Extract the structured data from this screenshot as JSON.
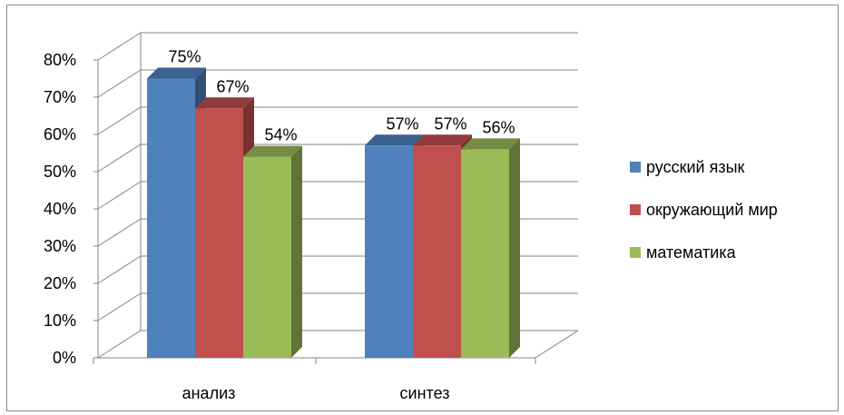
{
  "chart_data": {
    "type": "bar",
    "style": "3d-clustered-column",
    "categories": [
      "анализ",
      "синтез"
    ],
    "series": [
      {
        "name": "русский язык",
        "values": [
          75,
          57
        ],
        "color": "#4F81BD"
      },
      {
        "name": "окружающий мир",
        "values": [
          67,
          57
        ],
        "color": "#C0504D"
      },
      {
        "name": "математика",
        "values": [
          54,
          56
        ],
        "color": "#9BBB59"
      }
    ],
    "data_labels": [
      [
        "75%",
        "57%"
      ],
      [
        "67%",
        "57%"
      ],
      [
        "54%",
        "56%"
      ]
    ],
    "y_ticks": [
      "0%",
      "10%",
      "20%",
      "30%",
      "40%",
      "50%",
      "60%",
      "70%",
      "80%"
    ],
    "ylim": [
      0,
      80
    ],
    "grid": true,
    "legend_position": "right"
  }
}
